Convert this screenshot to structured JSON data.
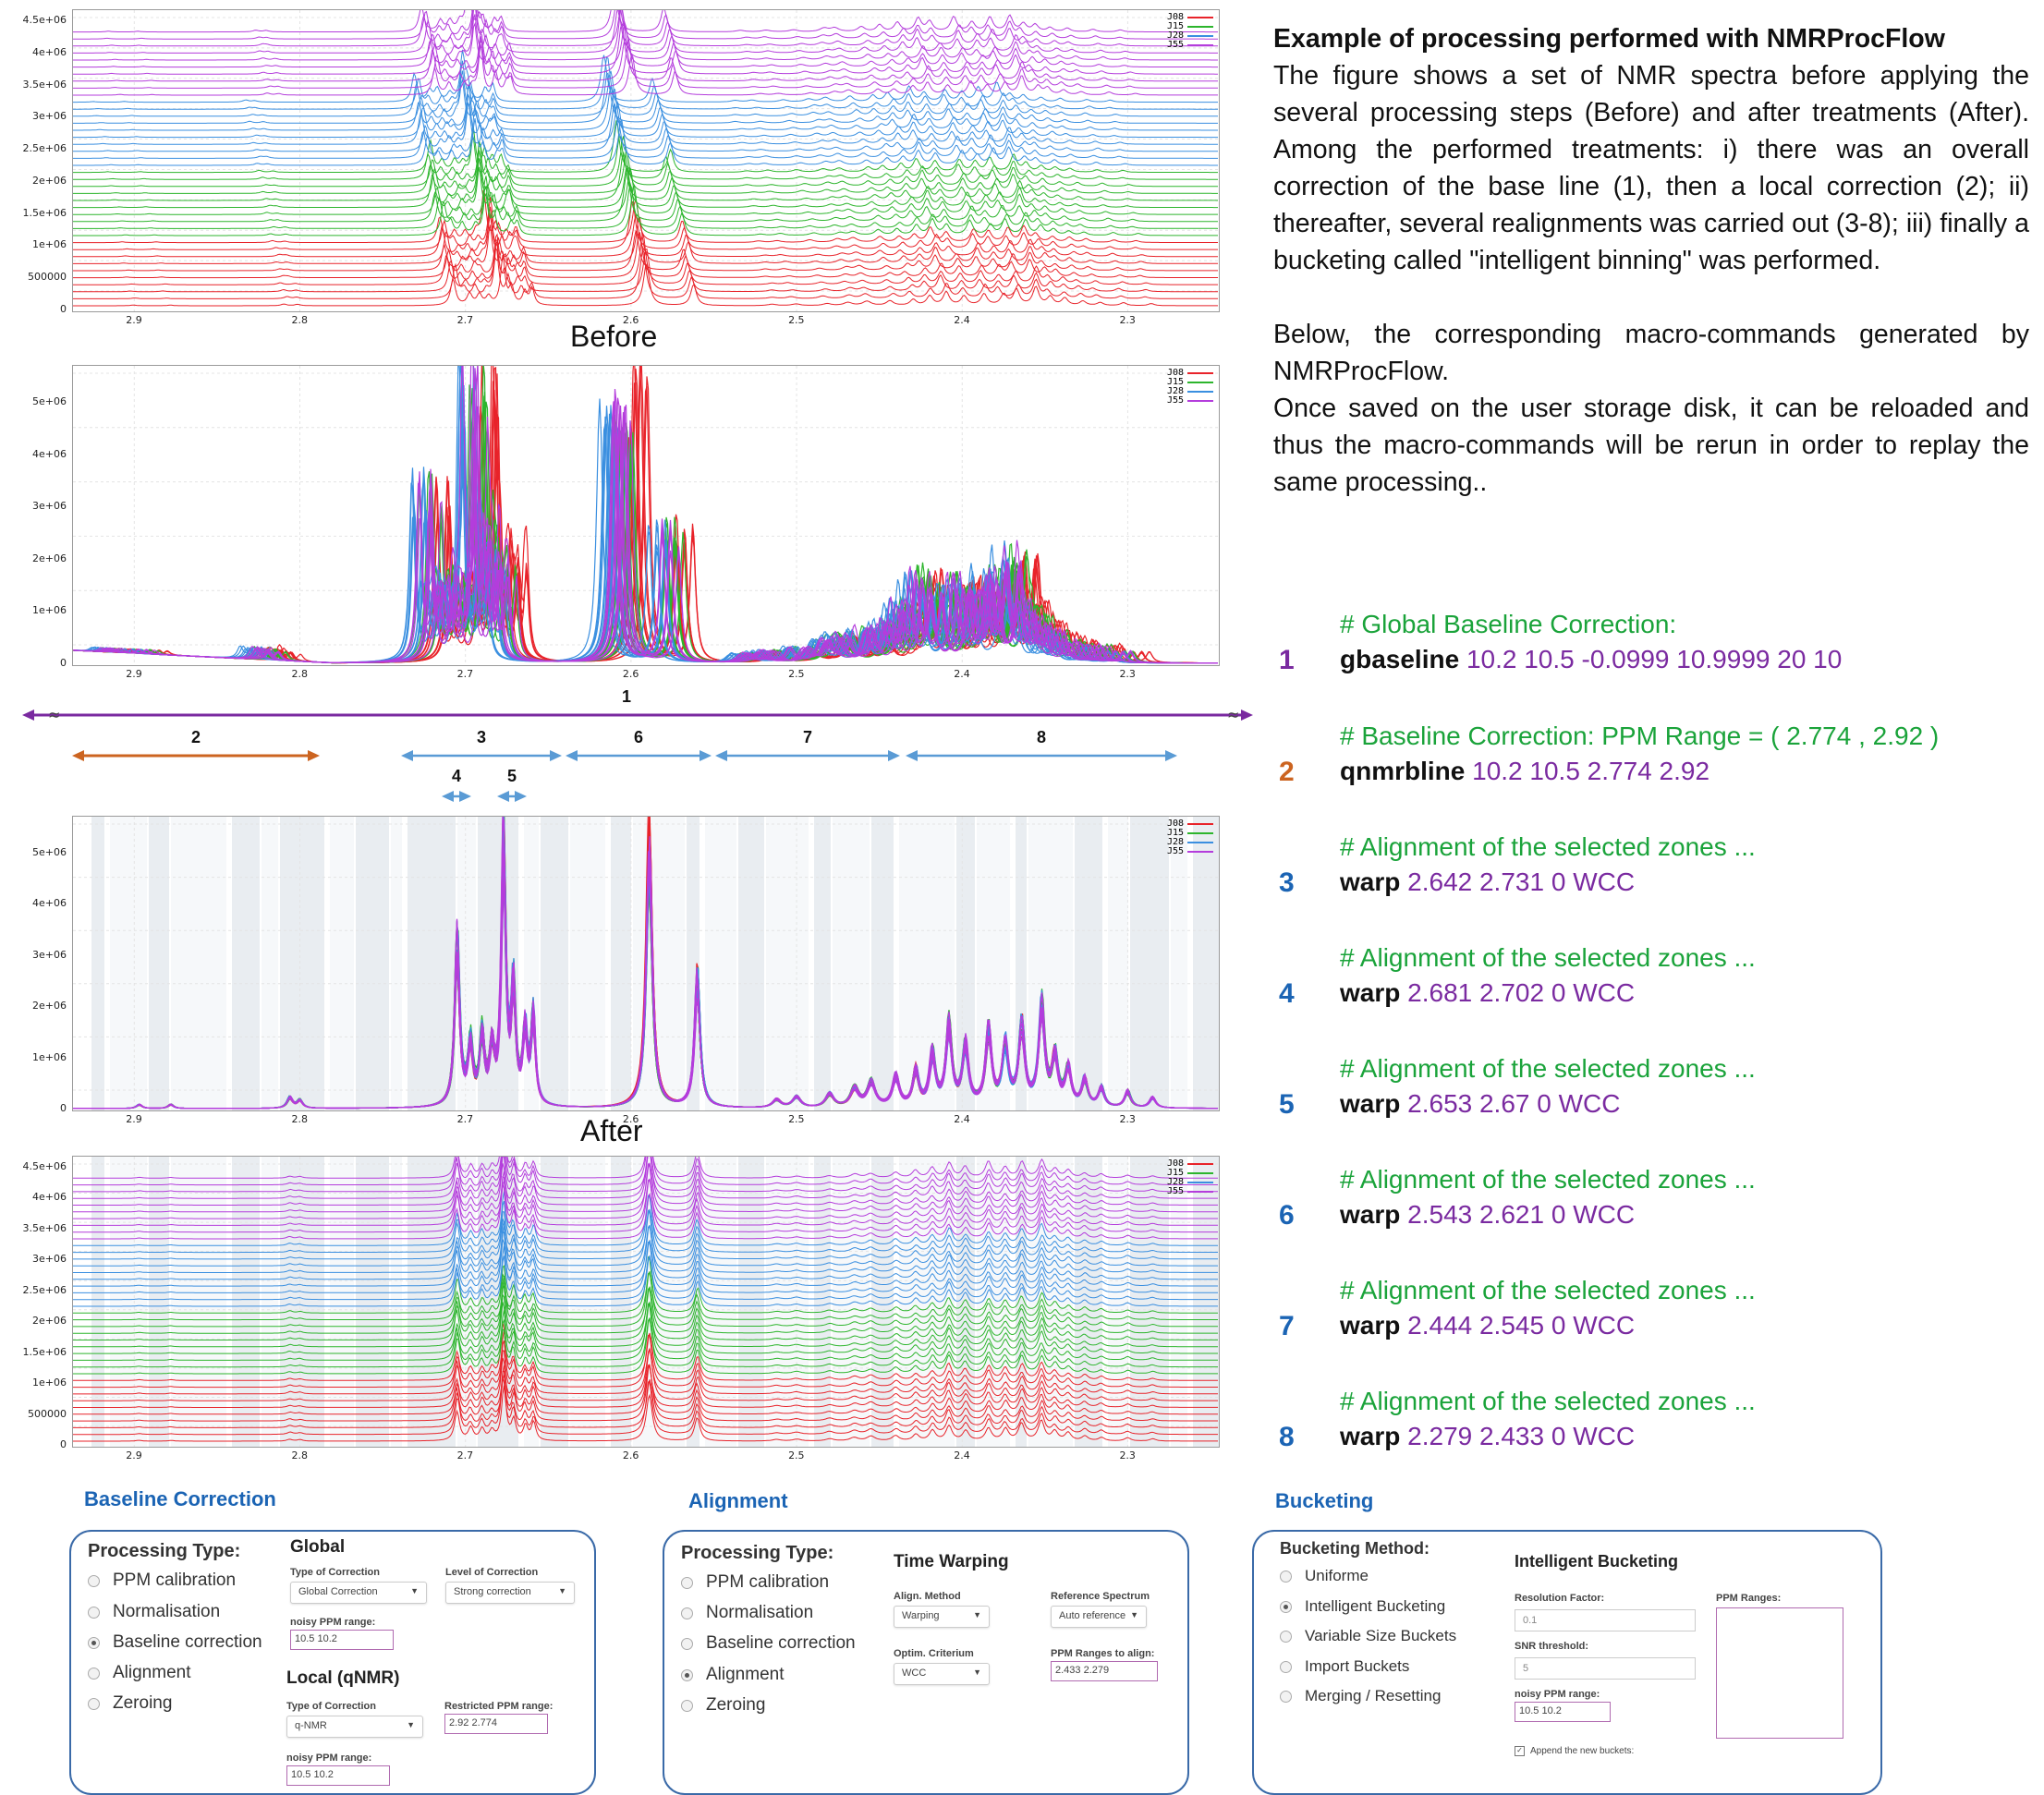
{
  "description": {
    "title": "Example of processing performed with NMRProcFlow",
    "paragraphs": [
      "The figure shows a set of NMR spectra before applying the several processing steps (Before) and after treatments (After). Among the performed treatments: i) there was an overall correction of the base line (1), then a local correction (2); ii) thereafter, several realignments was carried out (3-8); iii) finally a bucketing called \"intelligent binning\" was performed.",
      "Below, the corresponding macro-commands generated by NMRProcFlow.",
      "Once saved on the user storage disk, it can be reloaded and thus the macro-commands will be rerun in order to replay the same processing.."
    ]
  },
  "captions": {
    "before": "Before",
    "after": "After"
  },
  "legend": {
    "entries": [
      "J08",
      "J15",
      "J28",
      "J55"
    ],
    "colors": [
      "#e8232a",
      "#2db52d",
      "#3a8fe0",
      "#b43ddc"
    ]
  },
  "x_ticks": [
    "2.9",
    "2.8",
    "2.7",
    "2.6",
    "2.5",
    "2.4",
    "2.3"
  ],
  "plots": [
    {
      "kind": "stacked",
      "y_ticks": [
        "4.5e+06",
        "4e+06",
        "3.5e+06",
        "3e+06",
        "2.5e+06",
        "2e+06",
        "1.5e+06",
        "1e+06",
        "500000",
        "0"
      ]
    },
    {
      "kind": "overlay",
      "y_ticks": [
        "5e+06",
        "4e+06",
        "3e+06",
        "2e+06",
        "1e+06",
        "0"
      ]
    },
    {
      "kind": "overlay-buckets",
      "y_ticks": [
        "5e+06",
        "4e+06",
        "3e+06",
        "2e+06",
        "1e+06",
        "0"
      ]
    },
    {
      "kind": "stacked-buckets",
      "y_ticks": [
        "4.5e+06",
        "4e+06",
        "3.5e+06",
        "3e+06",
        "2.5e+06",
        "2e+06",
        "1.5e+06",
        "1e+06",
        "500000",
        "0"
      ]
    }
  ],
  "ranges": [
    {
      "label": "1",
      "color": "#7a2aa0"
    },
    {
      "label": "2",
      "color": "#cc6420"
    },
    {
      "label": "3",
      "color": "#5a9bd5"
    },
    {
      "label": "4",
      "color": "#5a9bd5"
    },
    {
      "label": "5",
      "color": "#5a9bd5"
    },
    {
      "label": "6",
      "color": "#5a9bd5"
    },
    {
      "label": "7",
      "color": "#5a9bd5"
    },
    {
      "label": "8",
      "color": "#5a9bd5"
    }
  ],
  "macros": [
    {
      "num": "1",
      "num_color": "#7a2aa0",
      "comment": "# Global Baseline Correction:",
      "command": "gbaseline",
      "args": "10.2 10.5 -0.0999 10.9999 20 10"
    },
    {
      "num": "2",
      "num_color": "#cc6420",
      "comment": "# Baseline Correction: PPM Range = (  2.774  ,  2.92  )",
      "command": "qnmrbline",
      "args": "10.2 10.5 2.774 2.92"
    },
    {
      "num": "3",
      "num_color": "#1b64b4",
      "comment": "# Alignment of the selected zones ...",
      "command": "warp",
      "args": "2.642 2.731 0 WCC"
    },
    {
      "num": "4",
      "num_color": "#1b64b4",
      "comment": "# Alignment of the selected zones ...",
      "command": "warp",
      "args": "2.681 2.702 0 WCC"
    },
    {
      "num": "5",
      "num_color": "#1b64b4",
      "comment": "# Alignment of the selected zones ...",
      "command": "warp",
      "args": "2.653 2.67 0 WCC"
    },
    {
      "num": "6",
      "num_color": "#1b64b4",
      "comment": "# Alignment of the selected zones ...",
      "command": "warp",
      "args": "2.543 2.621 0 WCC"
    },
    {
      "num": "7",
      "num_color": "#1b64b4",
      "comment": "# Alignment of the selected zones ...",
      "command": "warp",
      "args": "2.444 2.545 0 WCC"
    },
    {
      "num": "8",
      "num_color": "#1b64b4",
      "comment": "# Alignment of the selected zones ...",
      "command": "warp",
      "args": "2.279 2.433 0 WCC"
    }
  ],
  "panels": {
    "baseline": {
      "title": "Baseline Correction",
      "processing_type_label": "Processing Type:",
      "options": [
        "PPM calibration",
        "Normalisation",
        "Baseline correction",
        "Alignment",
        "Zeroing"
      ],
      "selected": "Baseline correction",
      "global_title": "Global",
      "type_label": "Type of Correction",
      "type_value": "Global Correction",
      "level_label": "Level of Correction",
      "level_value": "Strong correction",
      "noisy_label": "noisy PPM range:",
      "noisy_value": "10.5 10.2",
      "local_title": "Local (qNMR)",
      "local_type_label": "Type of Correction",
      "local_type_value": "q-NMR",
      "restricted_label": "Restricted PPM range:",
      "restricted_value": "2.92 2.774",
      "local_noisy_label": "noisy PPM range:",
      "local_noisy_value": "10.5 10.2"
    },
    "alignment": {
      "title": "Alignment",
      "processing_type_label": "Processing Type:",
      "options": [
        "PPM calibration",
        "Normalisation",
        "Baseline correction",
        "Alignment",
        "Zeroing"
      ],
      "selected": "Alignment",
      "tw_title": "Time Warping",
      "method_label": "Align. Method",
      "method_value": "Warping",
      "ref_label": "Reference Spectrum",
      "ref_value": "Auto reference",
      "optim_label": "Optim. Criterium",
      "optim_value": "WCC",
      "ranges_label": "PPM Ranges to align:",
      "ranges_value": "2.433 2.279"
    },
    "bucketing": {
      "title": "Bucketing",
      "method_label": "Bucketing Method:",
      "options": [
        "Uniforme",
        "Intelligent Bucketing",
        "Variable Size Buckets",
        "Import Buckets",
        "Merging / Resetting"
      ],
      "selected": "Intelligent Bucketing",
      "ib_title": "Intelligent Bucketing",
      "resolution_label": "Resolution Factor:",
      "resolution_value": "0.1",
      "snr_label": "SNR threshold:",
      "snr_value": "5",
      "noisy_label": "noisy PPM range:",
      "noisy_value": "10.5 10.2",
      "ppm_ranges_label": "PPM Ranges:",
      "append_label": "Append the new buckets:"
    }
  }
}
